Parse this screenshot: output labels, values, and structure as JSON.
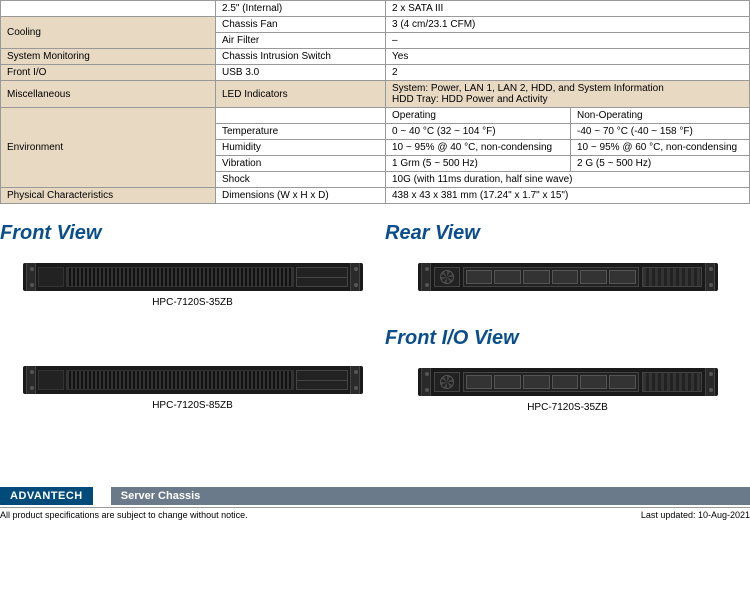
{
  "table": {
    "col1_bg_shade": "#e8d9c3",
    "rows": [
      {
        "c1": "",
        "c2": "2.5\" (Internal)",
        "c3": "2 x SATA III",
        "c4": "",
        "span34": true,
        "shade1": false,
        "shade2": false
      },
      {
        "c1": "Cooling",
        "c2": "Chassis Fan",
        "c3": "3 (4 cm/23.1 CFM)",
        "c4": "",
        "span34": true,
        "shade1": true,
        "shade2": false,
        "rowspan1": 2
      },
      {
        "c1": "",
        "c2": "Air Filter",
        "c3": "–",
        "c4": "",
        "span34": true,
        "shade1": true,
        "shade2": false,
        "skip1": true
      },
      {
        "c1": "System Monitoring",
        "c2": "Chassis Intrusion Switch",
        "c3": "Yes",
        "c4": "",
        "span34": true,
        "shade1": true,
        "shade2": false
      },
      {
        "c1": "Front I/O",
        "c2": "USB 3.0",
        "c3": "2",
        "c4": "",
        "span34": true,
        "shade1": true,
        "shade2": false
      },
      {
        "c1": "Miscellaneous",
        "c2": "LED Indicators",
        "c3": "System: Power, LAN 1, LAN 2, HDD, and System Information\nHDD Tray: HDD Power and Activity",
        "c4": "",
        "span34": true,
        "shade1": true,
        "shade2": true,
        "multiline": true
      },
      {
        "c1": "Environment",
        "c2": "",
        "c3": "Operating",
        "c4": "Non-Operating",
        "shade1": true,
        "shade2": false,
        "rowspan1": 5
      },
      {
        "c1": "",
        "c2": "Temperature",
        "c3": "0 ~ 40 °C (32 ~ 104 °F)",
        "c4": "-40 ~ 70 °C (-40 ~ 158 °F)",
        "shade1": true,
        "shade2": false,
        "skip1": true
      },
      {
        "c1": "",
        "c2": "Humidity",
        "c3": "10 ~ 95% @ 40 °C, non-condensing",
        "c4": "10 ~ 95% @ 60 °C, non-condensing",
        "shade1": true,
        "shade2": false,
        "skip1": true
      },
      {
        "c1": "",
        "c2": "Vibration",
        "c3": "1 Grm (5 ~ 500 Hz)",
        "c4": "2 G (5 ~ 500 Hz)",
        "shade1": true,
        "shade2": false,
        "skip1": true
      },
      {
        "c1": "",
        "c2": "Shock",
        "c3": "10G (with 11ms duration, half sine wave)",
        "c4": "",
        "span34": true,
        "shade1": true,
        "shade2": false,
        "skip1": true
      },
      {
        "c1": "Physical Characteristics",
        "c2": "Dimensions (W x H x D)",
        "c3": "438 x 43 x 381 mm (17.24\" x 1.7\" x 15\")",
        "c4": "",
        "span34": true,
        "shade1": true,
        "shade2": false
      }
    ]
  },
  "views": {
    "front_title": "Front View",
    "rear_title": "Rear View",
    "frontio_title": "Front I/O View",
    "caption1": "HPC-7120S-35ZB",
    "caption2": "HPC-7120S-85ZB",
    "caption_rear_io": "HPC-7120S-35ZB"
  },
  "footer": {
    "brand": "ADVANTECH",
    "category": "Server Chassis",
    "disclaimer": "All product specifications are subject to change without notice.",
    "updated": "Last updated: 10-Aug-2021"
  },
  "colors": {
    "title_color": "#0a4f8c",
    "chassis_bg": "#1a1a1a",
    "brand_bg": "#004b7a",
    "cat_bg": "#6b7a8a"
  }
}
